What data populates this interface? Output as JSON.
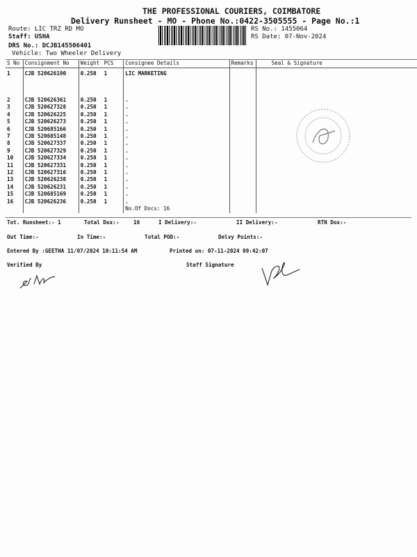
{
  "header": {
    "company": "THE PROFESSIONAL COURIERS, COIMBATORE",
    "subtitle": "Delivery Runsheet - MO - Phone No.:0422-3505555 - Page No.:1",
    "route": "Route: LIC TRZ RD MO",
    "staff": "Staff: USHA",
    "drs": "DRS No.: DCJB145506401",
    "vehicle": "Vehicle: Two Wheeler Delivery",
    "rs_no": "RS No.: 1455064",
    "rs_date": "RS Date: 07-Nov-2024"
  },
  "table": {
    "columns": [
      "S No",
      "Consignment No",
      "Weight",
      "PCS",
      "Consignee Details",
      "Remarks",
      "Seal & Signature"
    ],
    "rows": [
      {
        "sno": "1",
        "cn": "CJB 520626190",
        "wt": "0.250",
        "pcs": "1",
        "consignee": "LIC MARKETING"
      },
      {
        "sno": "2",
        "cn": "CJB 520626361",
        "wt": "0.250",
        "pcs": "1",
        "consignee": "."
      },
      {
        "sno": "3",
        "cn": "CJB 520627328",
        "wt": "0.250",
        "pcs": "1",
        "consignee": "."
      },
      {
        "sno": "4",
        "cn": "CJB 520626225",
        "wt": "0.250",
        "pcs": "1",
        "consignee": "."
      },
      {
        "sno": "5",
        "cn": "CJB 520626273",
        "wt": "0.250",
        "pcs": "1",
        "consignee": "."
      },
      {
        "sno": "6",
        "cn": "CJB 520685166",
        "wt": "0.250",
        "pcs": "1",
        "consignee": "."
      },
      {
        "sno": "7",
        "cn": "CJB 520685148",
        "wt": "0.250",
        "pcs": "1",
        "consignee": "."
      },
      {
        "sno": "8",
        "cn": "CJB 520627337",
        "wt": "0.250",
        "pcs": "1",
        "consignee": "."
      },
      {
        "sno": "9",
        "cn": "CJB 520627329",
        "wt": "0.250",
        "pcs": "1",
        "consignee": "."
      },
      {
        "sno": "10",
        "cn": "CJB 520627334",
        "wt": "0.250",
        "pcs": "1",
        "consignee": "."
      },
      {
        "sno": "11",
        "cn": "CJB 520627331",
        "wt": "0.250",
        "pcs": "1",
        "consignee": "."
      },
      {
        "sno": "12",
        "cn": "CJB 520627316",
        "wt": "0.250",
        "pcs": "1",
        "consignee": "."
      },
      {
        "sno": "13",
        "cn": "CJB 520626238",
        "wt": "0.250",
        "pcs": "1",
        "consignee": "."
      },
      {
        "sno": "14",
        "cn": "CJB 520626231",
        "wt": "0.250",
        "pcs": "1",
        "consignee": "."
      },
      {
        "sno": "15",
        "cn": "CJB 520685169",
        "wt": "0.250",
        "pcs": "1",
        "consignee": "."
      },
      {
        "sno": "16",
        "cn": "CJB 520626236",
        "wt": "0.250",
        "pcs": "1",
        "consignee": "."
      }
    ],
    "no_of_docs": "No.Of Docs: 16"
  },
  "summary": {
    "tot_runsheet": "Tot. Runsheet:- 1",
    "total_dox": "Total Dox:-",
    "total_dox_val": "16",
    "i_delivery": "I Delivery:-",
    "ii_delivery": "II Delivery:-",
    "rtn_dox": "RTN Dox:-",
    "out_time": "Out Time:-",
    "in_time": "In Time:-",
    "total_pod": "Total POD:-",
    "delvy_points": "Delvy Points:-",
    "entered_by": "Entered By :GEETHA 11/07/2024 10:11:54 AM",
    "printed_on": "Printed on: 07-11-2024 09:42:07",
    "verified_by": "Verified By",
    "staff_signature": "Staff Signature"
  }
}
